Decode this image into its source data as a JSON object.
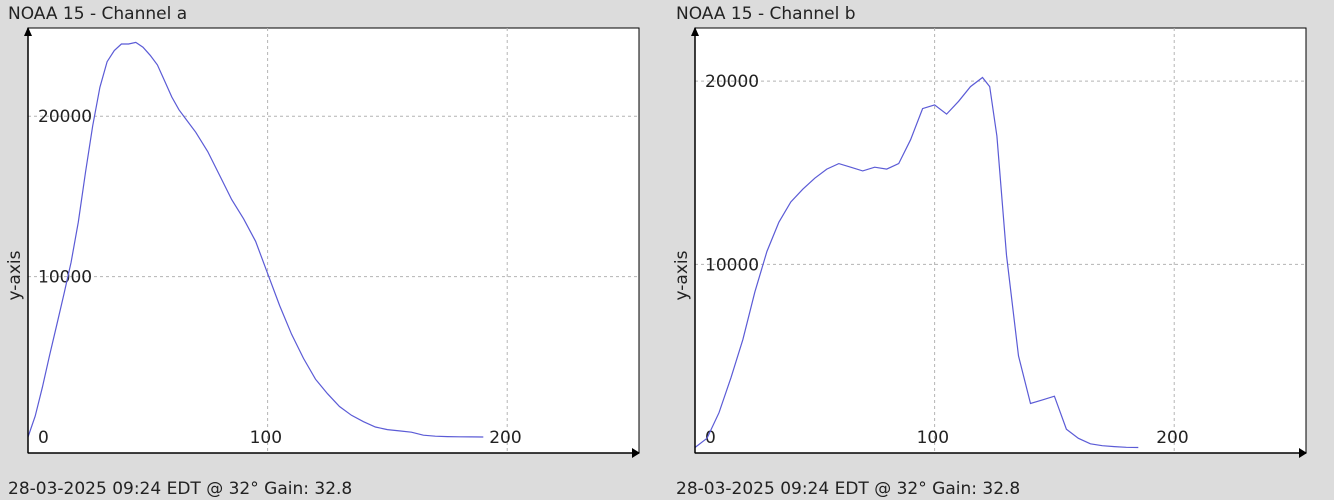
{
  "chart_data": [
    {
      "type": "line",
      "title": "NOAA 15 - Channel a",
      "footer": "28-03-2025 09:24 EDT @ 32° Gain: 32.8",
      "ylabel": "y-axis",
      "xlabel": "",
      "xlim": [
        0,
        255
      ],
      "ylim": [
        -1000,
        25500
      ],
      "x_ticks": [
        0,
        100,
        200
      ],
      "y_ticks": [
        10000,
        20000
      ],
      "grid": true,
      "line_color": "#5b5bd6",
      "series": [
        {
          "x": [
            0,
            3,
            6,
            9,
            12,
            15,
            18,
            21,
            24,
            27,
            30,
            33,
            36,
            39,
            42,
            45,
            48,
            51,
            54,
            57,
            60,
            63,
            66,
            70,
            75,
            80,
            85,
            90,
            95,
            100,
            105,
            110,
            115,
            120,
            125,
            130,
            135,
            140,
            145,
            150,
            155,
            160,
            165,
            170,
            175,
            180,
            185,
            190
          ],
          "values": [
            0,
            1300,
            3100,
            5100,
            7000,
            8900,
            10900,
            13400,
            16500,
            19400,
            21800,
            23400,
            24100,
            24500,
            24500,
            24600,
            24300,
            23800,
            23200,
            22200,
            21200,
            20400,
            19800,
            19000,
            17800,
            16300,
            14800,
            13600,
            12200,
            10200,
            8200,
            6400,
            4900,
            3600,
            2700,
            1900,
            1350,
            950,
            620,
            460,
            380,
            300,
            110,
            50,
            20,
            10,
            5,
            0
          ]
        }
      ]
    },
    {
      "type": "line",
      "title": "NOAA 15 - Channel b",
      "footer": "28-03-2025 09:24 EDT @ 32° Gain: 32.8",
      "ylabel": "y-axis",
      "xlabel": "",
      "xlim": [
        0,
        255
      ],
      "ylim": [
        -300,
        22900
      ],
      "x_ticks": [
        0,
        100,
        200
      ],
      "y_ticks": [
        10000,
        20000
      ],
      "grid": true,
      "line_color": "#5b5bd6",
      "series": [
        {
          "x": [
            0,
            5,
            10,
            15,
            20,
            25,
            30,
            35,
            40,
            45,
            50,
            55,
            60,
            65,
            70,
            75,
            80,
            85,
            90,
            95,
            100,
            105,
            110,
            115,
            120,
            123,
            126,
            130,
            135,
            140,
            145,
            150,
            155,
            160,
            165,
            170,
            175,
            180,
            185
          ],
          "values": [
            0,
            500,
            1900,
            3800,
            5900,
            8500,
            10700,
            12300,
            13400,
            14100,
            14700,
            15200,
            15500,
            15300,
            15100,
            15300,
            15200,
            15500,
            16800,
            18500,
            18700,
            18200,
            18900,
            19700,
            20200,
            19700,
            17000,
            10500,
            5000,
            2400,
            2600,
            2800,
            1000,
            500,
            200,
            100,
            50,
            10,
            0
          ]
        }
      ]
    }
  ]
}
